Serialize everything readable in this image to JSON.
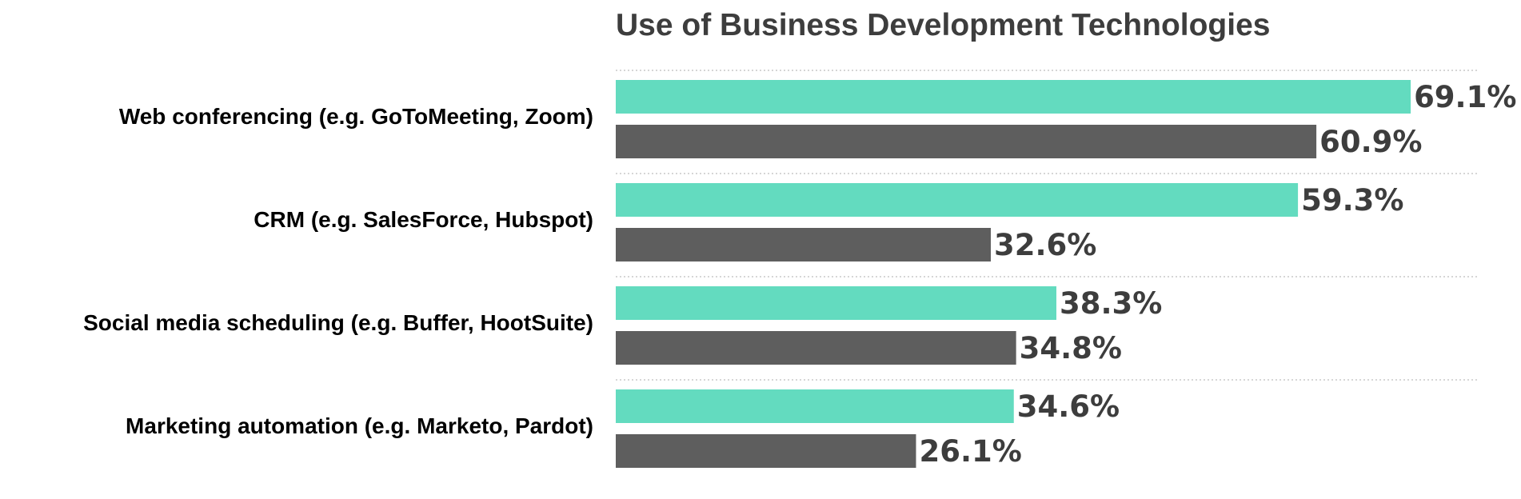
{
  "chart_data": {
    "type": "bar",
    "orientation": "horizontal",
    "title": "Use of Business Development Technologies",
    "categories": [
      "Web conferencing (e.g. GoToMeeting, Zoom)",
      "CRM (e.g. SalesForce, Hubspot)",
      "Social media scheduling (e.g. Buffer, HootSuite)",
      "Marketing automation (e.g. Marketo, Pardot)"
    ],
    "series": [
      {
        "values": [
          69.1,
          59.3,
          38.3,
          34.6
        ],
        "labels": [
          "69.1%",
          "59.3%",
          "38.3%",
          "34.6%"
        ],
        "color": "#63dbbf"
      },
      {
        "values": [
          60.9,
          32.6,
          34.8,
          26.1
        ],
        "labels": [
          "60.9%",
          "32.6%",
          "34.8%",
          "26.1%"
        ],
        "color": "#5e5e5e"
      }
    ],
    "xlim": [
      0,
      100
    ],
    "grid": true,
    "legend": "none",
    "axes_visible": false
  }
}
